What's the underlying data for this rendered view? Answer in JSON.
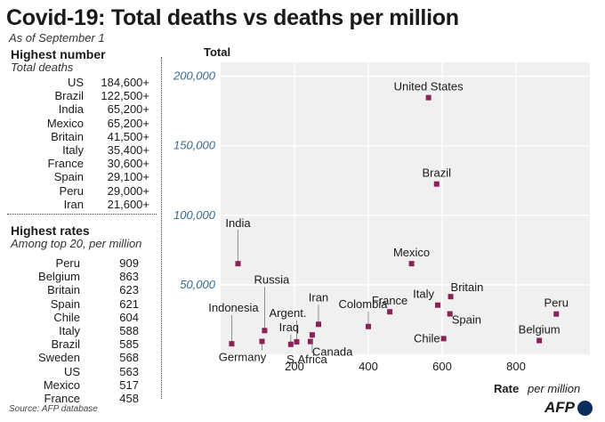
{
  "title": "Covid-19: Total deaths vs deaths per million",
  "subtitle": "As of September 1",
  "highest_number": {
    "heading": "Highest number",
    "subheading": "Total deaths",
    "rows": [
      {
        "country": "US",
        "value": "184,600+"
      },
      {
        "country": "Brazil",
        "value": "122,500+"
      },
      {
        "country": "India",
        "value": "65,200+"
      },
      {
        "country": "Mexico",
        "value": "65,200+"
      },
      {
        "country": "Britain",
        "value": "41,500+"
      },
      {
        "country": "Italy",
        "value": "35,400+"
      },
      {
        "country": "France",
        "value": "30,600+"
      },
      {
        "country": "Spain",
        "value": "29,100+"
      },
      {
        "country": "Peru",
        "value": "29,000+"
      },
      {
        "country": "Iran",
        "value": "21,600+"
      }
    ]
  },
  "highest_rates": {
    "heading": "Highest rates",
    "subheading": "Among top 20, per million",
    "rows": [
      {
        "country": "Peru",
        "value": "909"
      },
      {
        "country": "Belgium",
        "value": "863"
      },
      {
        "country": "Britain",
        "value": "623"
      },
      {
        "country": "Spain",
        "value": "621"
      },
      {
        "country": "Chile",
        "value": "604"
      },
      {
        "country": "Italy",
        "value": "588"
      },
      {
        "country": "Brazil",
        "value": "585"
      },
      {
        "country": "Sweden",
        "value": "568"
      },
      {
        "country": "US",
        "value": "563"
      },
      {
        "country": "Mexico",
        "value": "517"
      },
      {
        "country": "France",
        "value": "458"
      }
    ]
  },
  "source": "Source: AFP database",
  "logo_text": "AFP",
  "colors": {
    "marker": "#8c2058",
    "plot_bg": "#f0f0f0",
    "grid": "#ffffff",
    "axis_tick_y": "#3a6a90",
    "text": "#1a1a1a"
  },
  "chart_data": {
    "type": "scatter",
    "ylabel": "Total",
    "xlabel": "Rate",
    "xlabel_unit": "per million",
    "xlim": [
      0,
      1000
    ],
    "ylim": [
      0,
      210000
    ],
    "xticks": [
      200,
      400,
      600,
      800
    ],
    "yticks": [
      50000,
      100000,
      150000,
      200000
    ],
    "xtick_labels": [
      "200",
      "400",
      "600",
      "800"
    ],
    "ytick_labels": [
      "50,000",
      "100,000",
      "150,000",
      "200,000"
    ],
    "grid": true,
    "points": [
      {
        "label": "United States",
        "x": 563,
        "y": 184600
      },
      {
        "label": "Brazil",
        "x": 585,
        "y": 122500
      },
      {
        "label": "India",
        "x": 47,
        "y": 65200
      },
      {
        "label": "Mexico",
        "x": 517,
        "y": 65200
      },
      {
        "label": "Britain",
        "x": 623,
        "y": 41500
      },
      {
        "label": "Italy",
        "x": 588,
        "y": 35400
      },
      {
        "label": "France",
        "x": 458,
        "y": 30600
      },
      {
        "label": "Spain",
        "x": 621,
        "y": 29100
      },
      {
        "label": "Peru",
        "x": 909,
        "y": 29000
      },
      {
        "label": "Iran",
        "x": 265,
        "y": 21600
      },
      {
        "label": "Colombia",
        "x": 400,
        "y": 20000
      },
      {
        "label": "Russia",
        "x": 119,
        "y": 17100
      },
      {
        "label": "Chile",
        "x": 604,
        "y": 11300
      },
      {
        "label": "Belgium",
        "x": 863,
        "y": 9900
      },
      {
        "label": "Argent.",
        "x": 206,
        "y": 9000
      },
      {
        "label": "Canada",
        "x": 243,
        "y": 9200
      },
      {
        "label": "Iraq",
        "x": 190,
        "y": 7200
      },
      {
        "label": "Germany",
        "x": 112,
        "y": 9300
      },
      {
        "label": "S.Africa",
        "x": 248,
        "y": 14000
      },
      {
        "label": "Indonesia",
        "x": 30,
        "y": 7600
      }
    ]
  }
}
